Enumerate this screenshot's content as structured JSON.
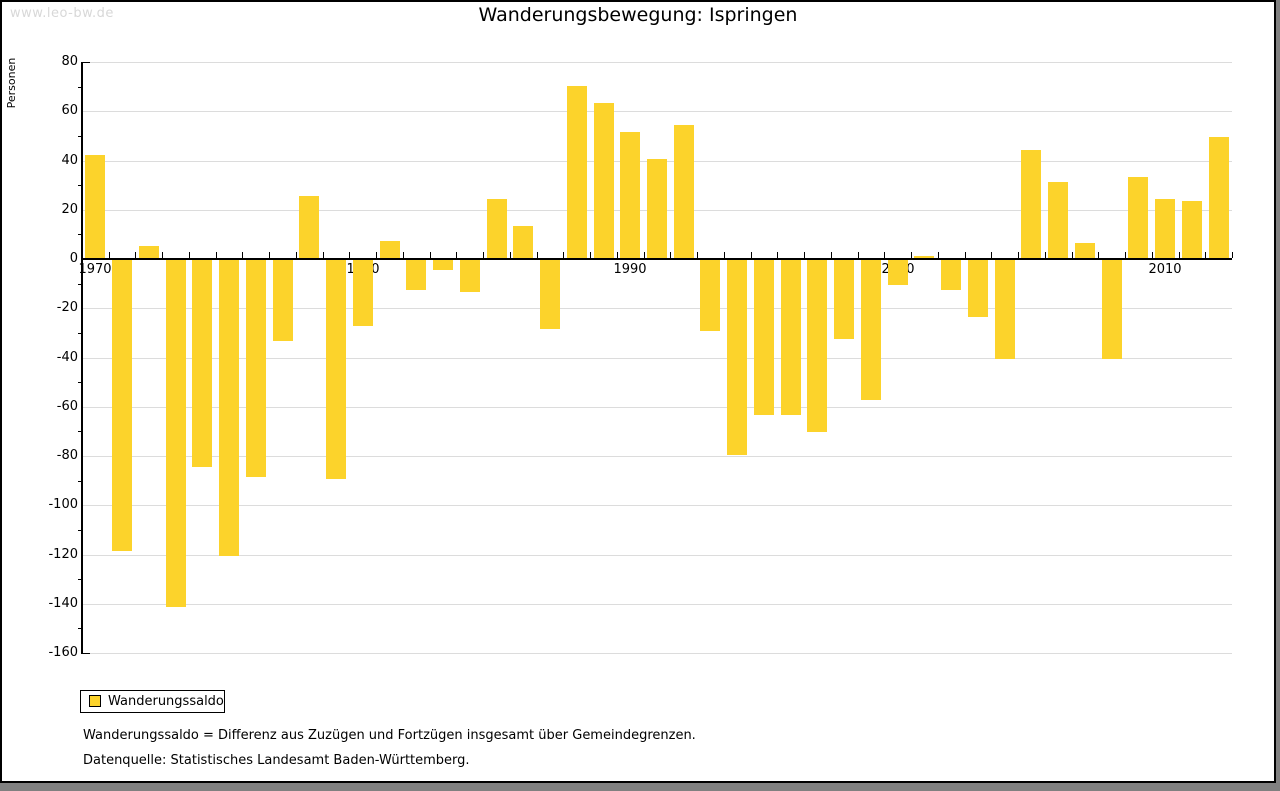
{
  "watermark": "www.leo-bw.de",
  "title": "Wanderungsbewegung: Ispringen",
  "y_axis_title": "Personen",
  "legend": {
    "label": "Wanderungssaldo",
    "swatch_color": "#fcd32b"
  },
  "footnotes": {
    "definition": "Wanderungssaldo = Differenz aus Zuzügen und Fortzügen insgesamt über Gemeindegrenzen.",
    "source": "Datenquelle: Statistisches Landesamt Baden-Württemberg."
  },
  "colors": {
    "bar": "#fcd32b",
    "gridline": "#dcdcdc",
    "axis": "#000000",
    "watermark_text": "#d8d8d8",
    "shadow": "#808080"
  },
  "chart_data": {
    "type": "bar",
    "title": "Wanderungsbewegung: Ispringen",
    "xlabel": "",
    "ylabel": "Personen",
    "series_name": "Wanderungssaldo",
    "x": [
      1970,
      1971,
      1972,
      1973,
      1974,
      1975,
      1976,
      1977,
      1978,
      1979,
      1980,
      1981,
      1982,
      1983,
      1984,
      1985,
      1986,
      1987,
      1988,
      1989,
      1990,
      1991,
      1992,
      1993,
      1994,
      1995,
      1996,
      1997,
      1998,
      1999,
      2000,
      2001,
      2002,
      2003,
      2004,
      2005,
      2006,
      2007,
      2008,
      2009,
      2010,
      2011,
      2012
    ],
    "values": [
      42,
      -118,
      5,
      -141,
      -84,
      -120,
      -88,
      -33,
      25,
      -89,
      -27,
      7,
      -12,
      -4,
      -13,
      24,
      13,
      -28,
      70,
      63,
      51,
      40,
      54,
      -29,
      -79,
      -63,
      -63,
      -70,
      -32,
      -57,
      -10,
      1,
      -12,
      -23,
      -40,
      44,
      31,
      6,
      -40,
      33,
      24,
      23,
      49
    ],
    "ylim": [
      -160,
      80
    ],
    "yticks": [
      80,
      60,
      40,
      20,
      0,
      -20,
      -40,
      -60,
      -80,
      -100,
      -120,
      -140,
      -160
    ],
    "yticks_minor": [
      70,
      50,
      30,
      10,
      -10,
      -30,
      -50,
      -70,
      -90,
      -110,
      -130,
      -150
    ],
    "xticks": [
      1970,
      1980,
      1990,
      2000,
      2010
    ],
    "grid": true,
    "legend_position": "bottom-left"
  }
}
